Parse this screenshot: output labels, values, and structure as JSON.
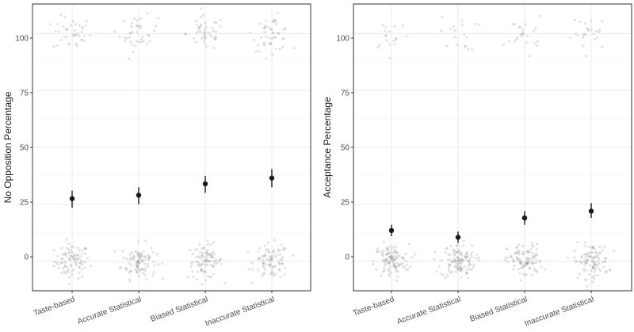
{
  "colors": {
    "panel_border": "#333333",
    "grid_major": "#ebebeb",
    "grid_minor": "#f5f5f5",
    "jitter_points": "#7f7f7f",
    "summary_points": "#1a1a1a",
    "tick_text": "#4d4d4d"
  },
  "chart_data": [
    {
      "type": "scatter",
      "description_of_marks": "jittered raw responses at 0 and 100 plus mean with 95% error bars",
      "title": "",
      "xlabel": "",
      "ylabel": "No Opposition Percentage",
      "categories": [
        "Taste-based",
        "Accurate Statistical",
        "Biased Statistical",
        "Inaccurate Statistical"
      ],
      "ylim": [
        -13,
        113
      ],
      "yticks": [
        0,
        25,
        50,
        75,
        100
      ],
      "ytick_labels": [
        "0",
        "25",
        "50",
        "75",
        "100"
      ],
      "grid": true,
      "summary": [
        {
          "category": "Taste-based",
          "mean": 27.5,
          "lower": 23.5,
          "upper": 31.0
        },
        {
          "category": "Accurate Statistical",
          "mean": 29.0,
          "lower": 25.0,
          "upper": 32.5
        },
        {
          "category": "Biased Statistical",
          "mean": 34.0,
          "lower": 30.0,
          "upper": 37.5
        },
        {
          "category": "Inaccurate Statistical",
          "mean": 36.5,
          "lower": 32.5,
          "upper": 40.5
        }
      ],
      "raw_counts": {
        "at_0": [
          90,
          95,
          90,
          85
        ],
        "at_100": [
          40,
          40,
          45,
          48
        ]
      }
    },
    {
      "type": "scatter",
      "description_of_marks": "jittered raw responses at 0 and 100 plus mean with 95% error bars",
      "title": "",
      "xlabel": "",
      "ylabel": "Acceptance Percentage",
      "categories": [
        "Taste-based",
        "Accurate Statistical",
        "Biased Statistical",
        "Inaccurate Statistical"
      ],
      "ylim": [
        -13,
        113
      ],
      "yticks": [
        0,
        25,
        50,
        75,
        100
      ],
      "ytick_labels": [
        "0",
        "25",
        "50",
        "75",
        "100"
      ],
      "grid": true,
      "summary": [
        {
          "category": "Taste-based",
          "mean": 13.5,
          "lower": 11.0,
          "upper": 16.0
        },
        {
          "category": "Accurate Statistical",
          "mean": 10.5,
          "lower": 8.0,
          "upper": 13.0
        },
        {
          "category": "Biased Statistical",
          "mean": 19.0,
          "lower": 16.0,
          "upper": 22.0
        },
        {
          "category": "Inaccurate Statistical",
          "mean": 22.0,
          "lower": 19.0,
          "upper": 25.5
        }
      ],
      "raw_counts": {
        "at_0": [
          110,
          120,
          100,
          100
        ],
        "at_100": [
          18,
          18,
          25,
          25
        ]
      }
    }
  ]
}
